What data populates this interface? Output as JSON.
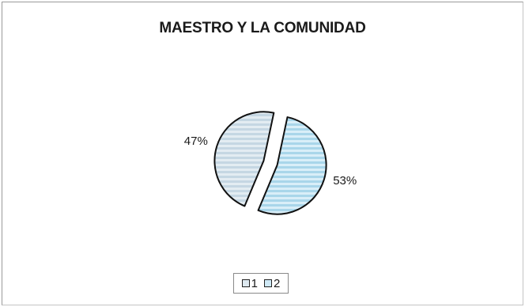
{
  "chart_data": {
    "type": "pie",
    "title": "MAESTRO Y LA COMUNIDAD",
    "categories": [
      "1",
      "2"
    ],
    "values": [
      47,
      53
    ],
    "data_labels": [
      "47%",
      "53%"
    ],
    "exploded": true,
    "legend": {
      "placement": "bottom",
      "entries": [
        "1",
        "2"
      ]
    },
    "colors": {
      "slice_1": "#dde8ef",
      "slice_2": "#cfe9f6",
      "stripe_2": "#a9d6ea",
      "stripe_1": "#c5d7e3",
      "outline": "#111111"
    }
  }
}
